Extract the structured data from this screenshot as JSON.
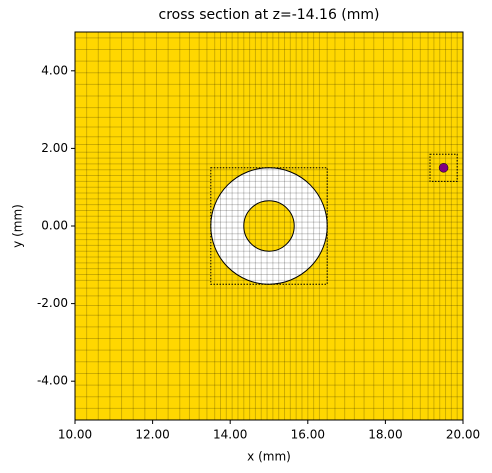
{
  "chart_data": {
    "type": "structure",
    "title": "cross section at z=-14.16 (mm)",
    "x_label": "x (mm)",
    "y_label": "y (mm)",
    "xlim": [
      10,
      20
    ],
    "ylim": [
      -5,
      5
    ],
    "xticks": [
      {
        "value": 10,
        "label": "10.00"
      },
      {
        "value": 12,
        "label": "12.00"
      },
      {
        "value": 14,
        "label": "14.00"
      },
      {
        "value": 16,
        "label": "16.00"
      },
      {
        "value": 18,
        "label": "18.00"
      },
      {
        "value": 20,
        "label": "20.00"
      }
    ],
    "yticks": [
      {
        "value": -4,
        "label": "-4.00"
      },
      {
        "value": -2,
        "label": "-2.00"
      },
      {
        "value": 0,
        "label": "0.00"
      },
      {
        "value": 2,
        "label": "2.00"
      },
      {
        "value": 4,
        "label": "4.00"
      }
    ],
    "background_color": "#ffd700",
    "mesh_color": "#000000",
    "mesh_x": [
      10.3,
      10.6,
      10.9,
      11.2,
      11.5,
      11.8,
      12.1,
      12.4,
      12.7,
      12.95,
      13.2,
      13.4,
      13.6,
      13.75,
      13.9,
      14.05,
      14.2,
      14.35,
      14.5,
      14.65,
      14.8,
      14.95,
      15.1,
      15.25,
      15.4,
      15.55,
      15.7,
      15.85,
      16.0,
      16.15,
      16.3,
      16.5,
      16.7,
      16.95,
      17.2,
      17.45,
      17.7,
      17.95,
      18.2,
      18.45,
      18.7,
      18.9,
      19.1,
      19.25,
      19.4,
      19.55,
      19.7,
      19.85
    ],
    "mesh_y": [
      -4.7,
      -4.4,
      -4.1,
      -3.8,
      -3.5,
      -3.2,
      -2.9,
      -2.6,
      -2.3,
      -2.05,
      -1.8,
      -1.6,
      -1.4,
      -1.25,
      -1.1,
      -0.95,
      -0.8,
      -0.65,
      -0.5,
      -0.35,
      -0.2,
      -0.05,
      0.1,
      0.25,
      0.4,
      0.55,
      0.7,
      0.85,
      1.0,
      1.15,
      1.3,
      1.45,
      1.6,
      1.75,
      1.9,
      2.1,
      2.3,
      2.55,
      2.8,
      3.05,
      3.35,
      3.65,
      3.95,
      4.25,
      4.55,
      4.85
    ],
    "annulus": {
      "center": [
        15,
        0
      ],
      "outer_radius": 1.5,
      "inner_radius": 0.65,
      "color": "#ffffff"
    },
    "boxes": [
      {
        "x": [
          13.5,
          16.5
        ],
        "y": [
          -1.5,
          1.5
        ]
      },
      {
        "x": [
          19.15,
          19.85
        ],
        "y": [
          1.15,
          1.85
        ]
      }
    ],
    "point": {
      "x": 19.5,
      "y": 1.5,
      "color": "#800080"
    }
  }
}
